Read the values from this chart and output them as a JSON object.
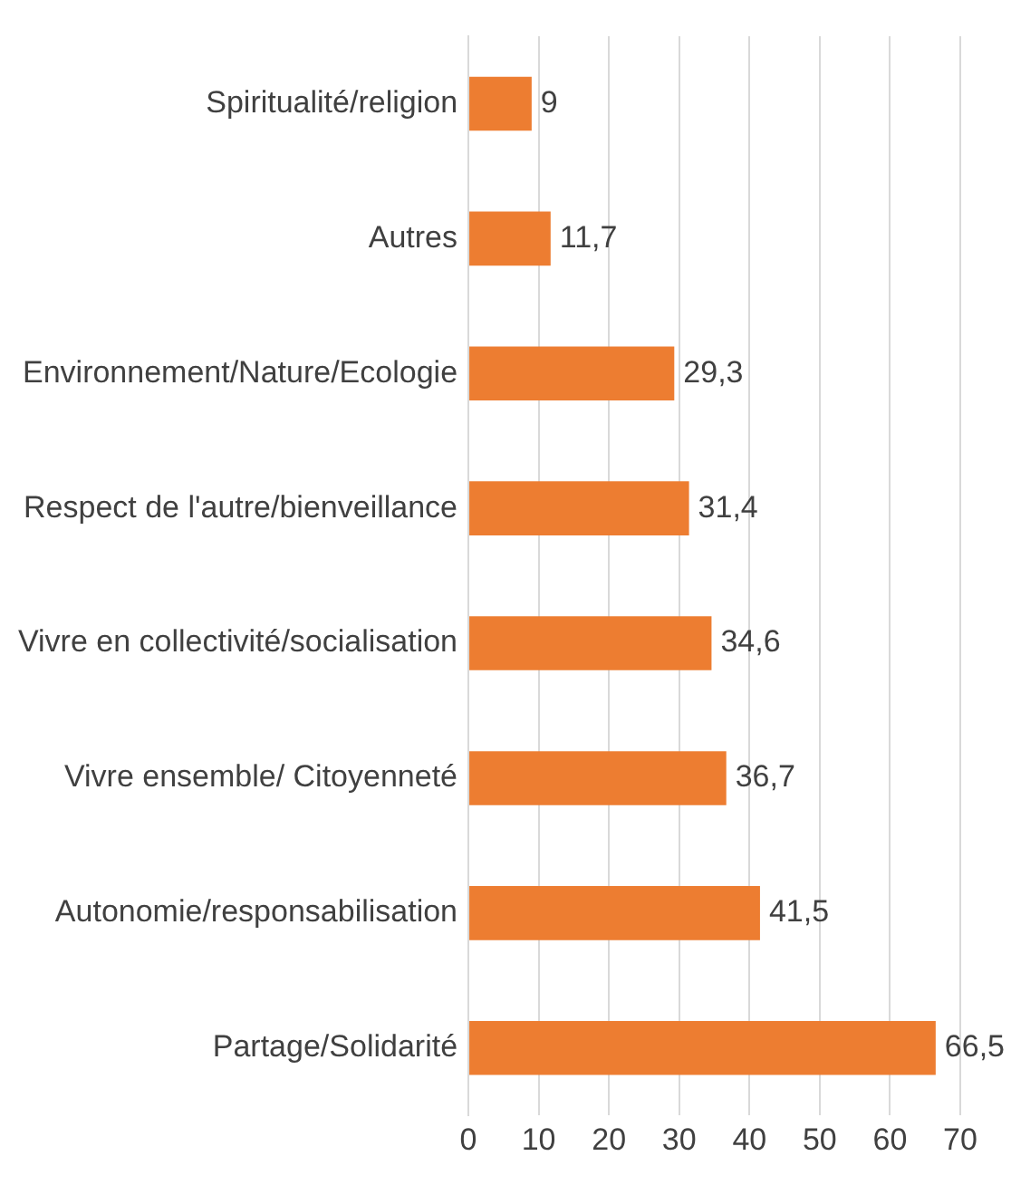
{
  "chart_data": {
    "type": "bar",
    "orientation": "horizontal",
    "categories": [
      "Spiritualité/religion",
      "Autres",
      "Environnement/Nature/Ecologie",
      "Respect de l'autre/bienveillance",
      "Vivre en collectivité/socialisation",
      "Vivre ensemble/ Citoyenneté",
      "Autonomie/responsabilisation",
      "Partage/Solidarité"
    ],
    "values": [
      9,
      11.7,
      29.3,
      31.4,
      34.6,
      36.7,
      41.5,
      66.5
    ],
    "value_labels": [
      "9",
      "11,7",
      "29,3",
      "31,4",
      "34,6",
      "36,7",
      "41,5",
      "66,5"
    ],
    "color": "#ed7d31",
    "xlim": [
      0,
      70
    ],
    "xticks": [
      0,
      10,
      20,
      30,
      40,
      50,
      60,
      70
    ],
    "grid": "x",
    "legend": false
  }
}
